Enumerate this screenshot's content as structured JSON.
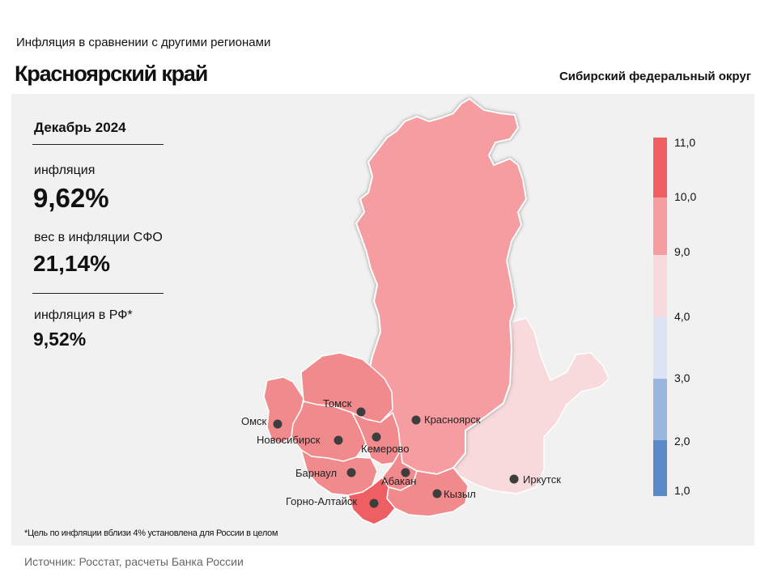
{
  "header": {
    "subtitle": "Инфляция  в сравнении  с другими  регионами",
    "title": "Красноярский край",
    "district": "Сибирский федеральный округ"
  },
  "stats": {
    "period": "Декабрь 2024",
    "inflation_label": "инфляция",
    "inflation_value": "9,62%",
    "weight_label": "вес в инфляции  СФО",
    "weight_value": "21,14%",
    "rf_label": "инфляция  в РФ*",
    "rf_value": "9,52%"
  },
  "colors": {
    "panel_bg": "#f1f1f1",
    "highlight": "#f59da0",
    "level_9_10": "#f08a8c",
    "level_10_11": "#ee5f63",
    "level_4_9": "#f8d9dc",
    "level_3_4": "#dce4f4",
    "level_2_3": "#9ab6dc",
    "level_1_2": "#5b8ac6"
  },
  "legend": {
    "ticks": [
      "1,0",
      "2,0",
      "3,0",
      "4,0",
      "9,0",
      "10,0",
      "11,0"
    ],
    "bins": [
      {
        "from": 1.0,
        "to": 2.0,
        "color": "#5b8ac6"
      },
      {
        "from": 2.0,
        "to": 3.0,
        "color": "#9ab6dc"
      },
      {
        "from": 3.0,
        "to": 4.0,
        "color": "#dce4f4"
      },
      {
        "from": 4.0,
        "to": 9.0,
        "color": "#f8d9dc"
      },
      {
        "from": 9.0,
        "to": 10.0,
        "color": "#f59da0"
      },
      {
        "from": 10.0,
        "to": 11.0,
        "color": "#ee5f63"
      }
    ]
  },
  "cities": [
    {
      "name": "Томск"
    },
    {
      "name": "Красноярск"
    },
    {
      "name": "Омск"
    },
    {
      "name": "Новосибирск"
    },
    {
      "name": "Кемерово"
    },
    {
      "name": "Барнаул"
    },
    {
      "name": "Абакан"
    },
    {
      "name": "Кызыл"
    },
    {
      "name": "Иркутск"
    },
    {
      "name": "Горно-Алтайск"
    }
  ],
  "footnote": "*Цель по инфляции вблизи 4% установлена для России в целом",
  "source": "Источник: Росстат, расчеты Банка России"
}
